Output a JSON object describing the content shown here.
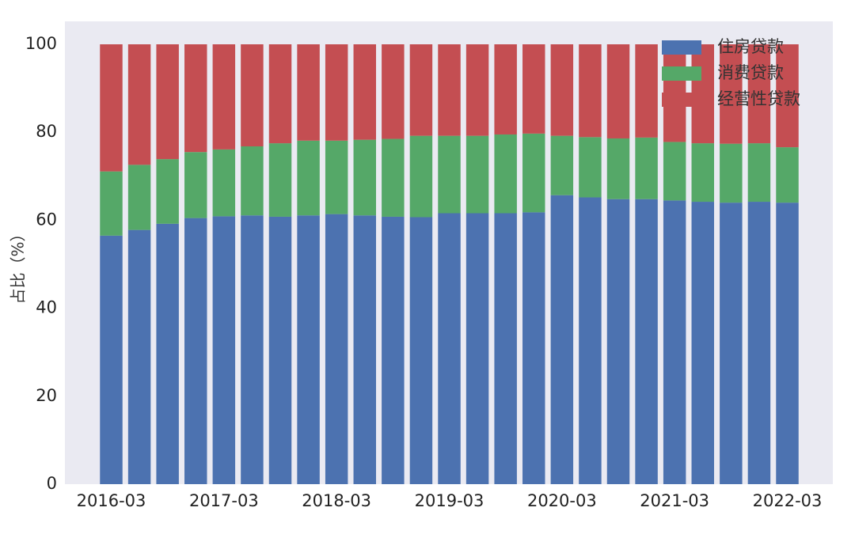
{
  "chart_data": {
    "type": "bar",
    "stacked": true,
    "categories": [
      "2016-03",
      "2016-06",
      "2016-09",
      "2016-12",
      "2017-03",
      "2017-06",
      "2017-09",
      "2017-12",
      "2018-03",
      "2018-06",
      "2018-09",
      "2018-12",
      "2019-03",
      "2019-06",
      "2019-09",
      "2019-12",
      "2020-03",
      "2020-06",
      "2020-09",
      "2020-12",
      "2021-03",
      "2021-06",
      "2021-09",
      "2021-12",
      "2022-03"
    ],
    "xtick_labels": [
      "2016-03",
      "2017-03",
      "2018-03",
      "2019-03",
      "2020-03",
      "2021-03",
      "2022-03"
    ],
    "series": [
      {
        "name": "住房贷款",
        "color": "#4C72B0",
        "values": [
          56.5,
          57.8,
          59.2,
          60.5,
          60.9,
          61.1,
          60.8,
          61.1,
          61.4,
          61.1,
          60.8,
          60.7,
          61.6,
          61.6,
          61.6,
          61.8,
          65.7,
          65.2,
          64.8,
          64.8,
          64.5,
          64.2,
          64.0,
          64.2,
          64.0
        ]
      },
      {
        "name": "消费贷款",
        "color": "#55A868",
        "values": [
          14.6,
          14.8,
          14.7,
          15.0,
          15.2,
          15.7,
          16.7,
          17.0,
          16.7,
          17.2,
          17.7,
          18.5,
          17.6,
          17.6,
          17.9,
          17.9,
          13.5,
          13.7,
          13.8,
          14.0,
          13.3,
          13.3,
          13.4,
          13.3,
          12.6
        ]
      },
      {
        "name": "经营性贷款",
        "color": "#C44E52",
        "values": [
          28.9,
          27.4,
          26.1,
          24.5,
          23.9,
          23.2,
          22.5,
          21.9,
          21.9,
          21.7,
          21.5,
          20.8,
          20.8,
          20.8,
          20.5,
          20.3,
          20.8,
          21.1,
          21.4,
          21.2,
          22.2,
          22.5,
          22.6,
          22.5,
          23.4
        ]
      }
    ],
    "ylabel": "占比（%）",
    "ylim": [
      0,
      105
    ],
    "yticks": [
      0,
      20,
      40,
      60,
      80,
      100
    ],
    "legend_position": "top-right",
    "grid": false,
    "background": "#EAEAF2"
  }
}
